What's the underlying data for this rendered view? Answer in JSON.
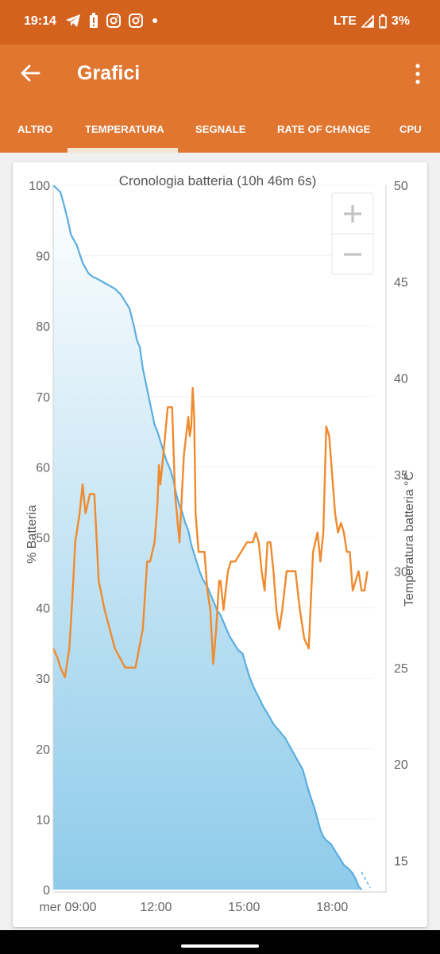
{
  "status_bar": {
    "time": "19:14",
    "network": "LTE",
    "battery": "3%"
  },
  "app_bar": {
    "title": "Grafici"
  },
  "tabs": [
    {
      "label": "ALTRO",
      "selected": false
    },
    {
      "label": "TEMPERATURA",
      "selected": true
    },
    {
      "label": "SEGNALE",
      "selected": false
    },
    {
      "label": "RATE OF CHANGE",
      "selected": false
    },
    {
      "label": "CPU",
      "selected": false
    }
  ],
  "chart_data": {
    "type": "area",
    "title": "Cronologia batteria (10h 46m 6s)",
    "ylabel": "% Batteria",
    "y2label": "Temperatura batteria °C",
    "ylim": [
      0,
      100
    ],
    "y2lim": [
      13.5,
      50
    ],
    "y_ticks": [
      "0",
      "10",
      "20",
      "30",
      "40",
      "50",
      "60",
      "70",
      "80",
      "90",
      "100"
    ],
    "y2_ticks": [
      "15",
      "20",
      "25",
      "30",
      "35",
      "40",
      "45",
      "50"
    ],
    "x_ticks": [
      {
        "label": "mer 09:00",
        "h": 9
      },
      {
        "label": "12:00",
        "h": 12
      },
      {
        "label": "15:00",
        "h": 15
      },
      {
        "label": "18:00",
        "h": 18
      }
    ],
    "xlim_hours": [
      8.5,
      19.4
    ],
    "colors": {
      "battery": "#5aaee0",
      "temperature": "#ef8a2f"
    },
    "series": [
      {
        "axis": "left",
        "x_hours": [
          8.5,
          8.6,
          8.75,
          8.85,
          9.0,
          9.1,
          9.3,
          9.5,
          9.7,
          9.85,
          10.0,
          10.3,
          10.6,
          10.8,
          11.1,
          11.25,
          11.35,
          11.45,
          11.55,
          11.65,
          11.75,
          11.85,
          11.95,
          12.05,
          12.2,
          12.35,
          12.5,
          12.6,
          12.7,
          12.8,
          12.9,
          13.0,
          13.1,
          13.2,
          13.35,
          13.5,
          13.6,
          13.75,
          13.85,
          13.95,
          14.1,
          14.2,
          14.35,
          14.5,
          14.65,
          14.8,
          14.95,
          15.05,
          15.2,
          15.35,
          15.5,
          15.65,
          15.8,
          16.0,
          16.2,
          16.4,
          16.6,
          16.8,
          17.0,
          17.2,
          17.4,
          17.5,
          17.6,
          17.7,
          17.8,
          17.95,
          18.1,
          18.25,
          18.4,
          18.55,
          18.7,
          18.8,
          18.9,
          19.0
        ],
        "values": [
          100,
          99.6,
          99.0,
          97.5,
          95,
          93,
          91.5,
          89,
          87.5,
          87,
          86.7,
          86,
          85.3,
          84.5,
          82.5,
          80,
          78,
          77,
          74,
          72,
          70,
          68,
          66,
          65,
          63,
          61,
          59.5,
          58,
          56,
          54.5,
          53.5,
          52,
          51,
          49,
          47,
          45,
          44,
          43,
          42,
          41,
          39.5,
          39,
          37.5,
          36,
          35,
          34,
          33.5,
          32,
          30,
          28.5,
          27.3,
          26,
          25,
          23.5,
          22.5,
          21.5,
          20,
          18.5,
          17,
          14,
          11.5,
          10,
          8.5,
          7.5,
          7,
          6.5,
          5.5,
          4.5,
          3.5,
          3.0,
          2.3,
          1.5,
          0.5,
          0
        ]
      },
      {
        "axis": "right",
        "x_hours": [
          8.5,
          8.65,
          8.75,
          8.9,
          9.05,
          9.15,
          9.25,
          9.4,
          9.5,
          9.6,
          9.75,
          9.9,
          10.05,
          10.25,
          10.6,
          10.95,
          11.3,
          11.55,
          11.7,
          11.8,
          11.95,
          12.05,
          12.1,
          12.15,
          12.25,
          12.4,
          12.55,
          12.65,
          12.8,
          12.95,
          13.1,
          13.15,
          13.2,
          13.25,
          13.3,
          13.35,
          13.45,
          13.55,
          13.65,
          13.75,
          13.85,
          13.95,
          14.05,
          14.15,
          14.2,
          14.3,
          14.45,
          14.55,
          14.7,
          14.9,
          15.1,
          15.3,
          15.4,
          15.5,
          15.6,
          15.7,
          15.8,
          15.9,
          16.0,
          16.1,
          16.2,
          16.3,
          16.45,
          16.6,
          16.75,
          16.9,
          17.05,
          17.2,
          17.35,
          17.5,
          17.6,
          17.7,
          17.8,
          17.9,
          18.0,
          18.1,
          18.2,
          18.3,
          18.4,
          18.5,
          18.6,
          18.7,
          18.8,
          18.9,
          19.0,
          19.1,
          19.2
        ],
        "values": [
          26,
          25.5,
          25,
          24.5,
          26,
          28.5,
          31.5,
          33,
          34.5,
          33,
          34,
          34,
          29.5,
          28,
          26,
          25,
          25,
          27,
          30.5,
          30.5,
          31.5,
          33.5,
          35.5,
          34.5,
          36,
          38.5,
          38.5,
          34,
          31.5,
          36,
          38,
          37,
          37.5,
          39.5,
          38,
          33,
          31,
          31,
          31,
          29,
          28,
          25.2,
          27,
          29.5,
          29.5,
          28,
          30,
          30.5,
          30.5,
          31,
          31.5,
          31.5,
          32,
          31.5,
          30,
          29,
          31.5,
          31.5,
          30,
          28,
          27,
          28,
          30,
          30,
          30,
          28,
          26.5,
          26,
          31,
          32,
          30.5,
          32,
          37.5,
          37,
          35,
          33,
          32,
          32.5,
          32,
          31,
          31,
          29,
          29.5,
          30,
          29,
          29,
          30
        ]
      }
    ]
  }
}
